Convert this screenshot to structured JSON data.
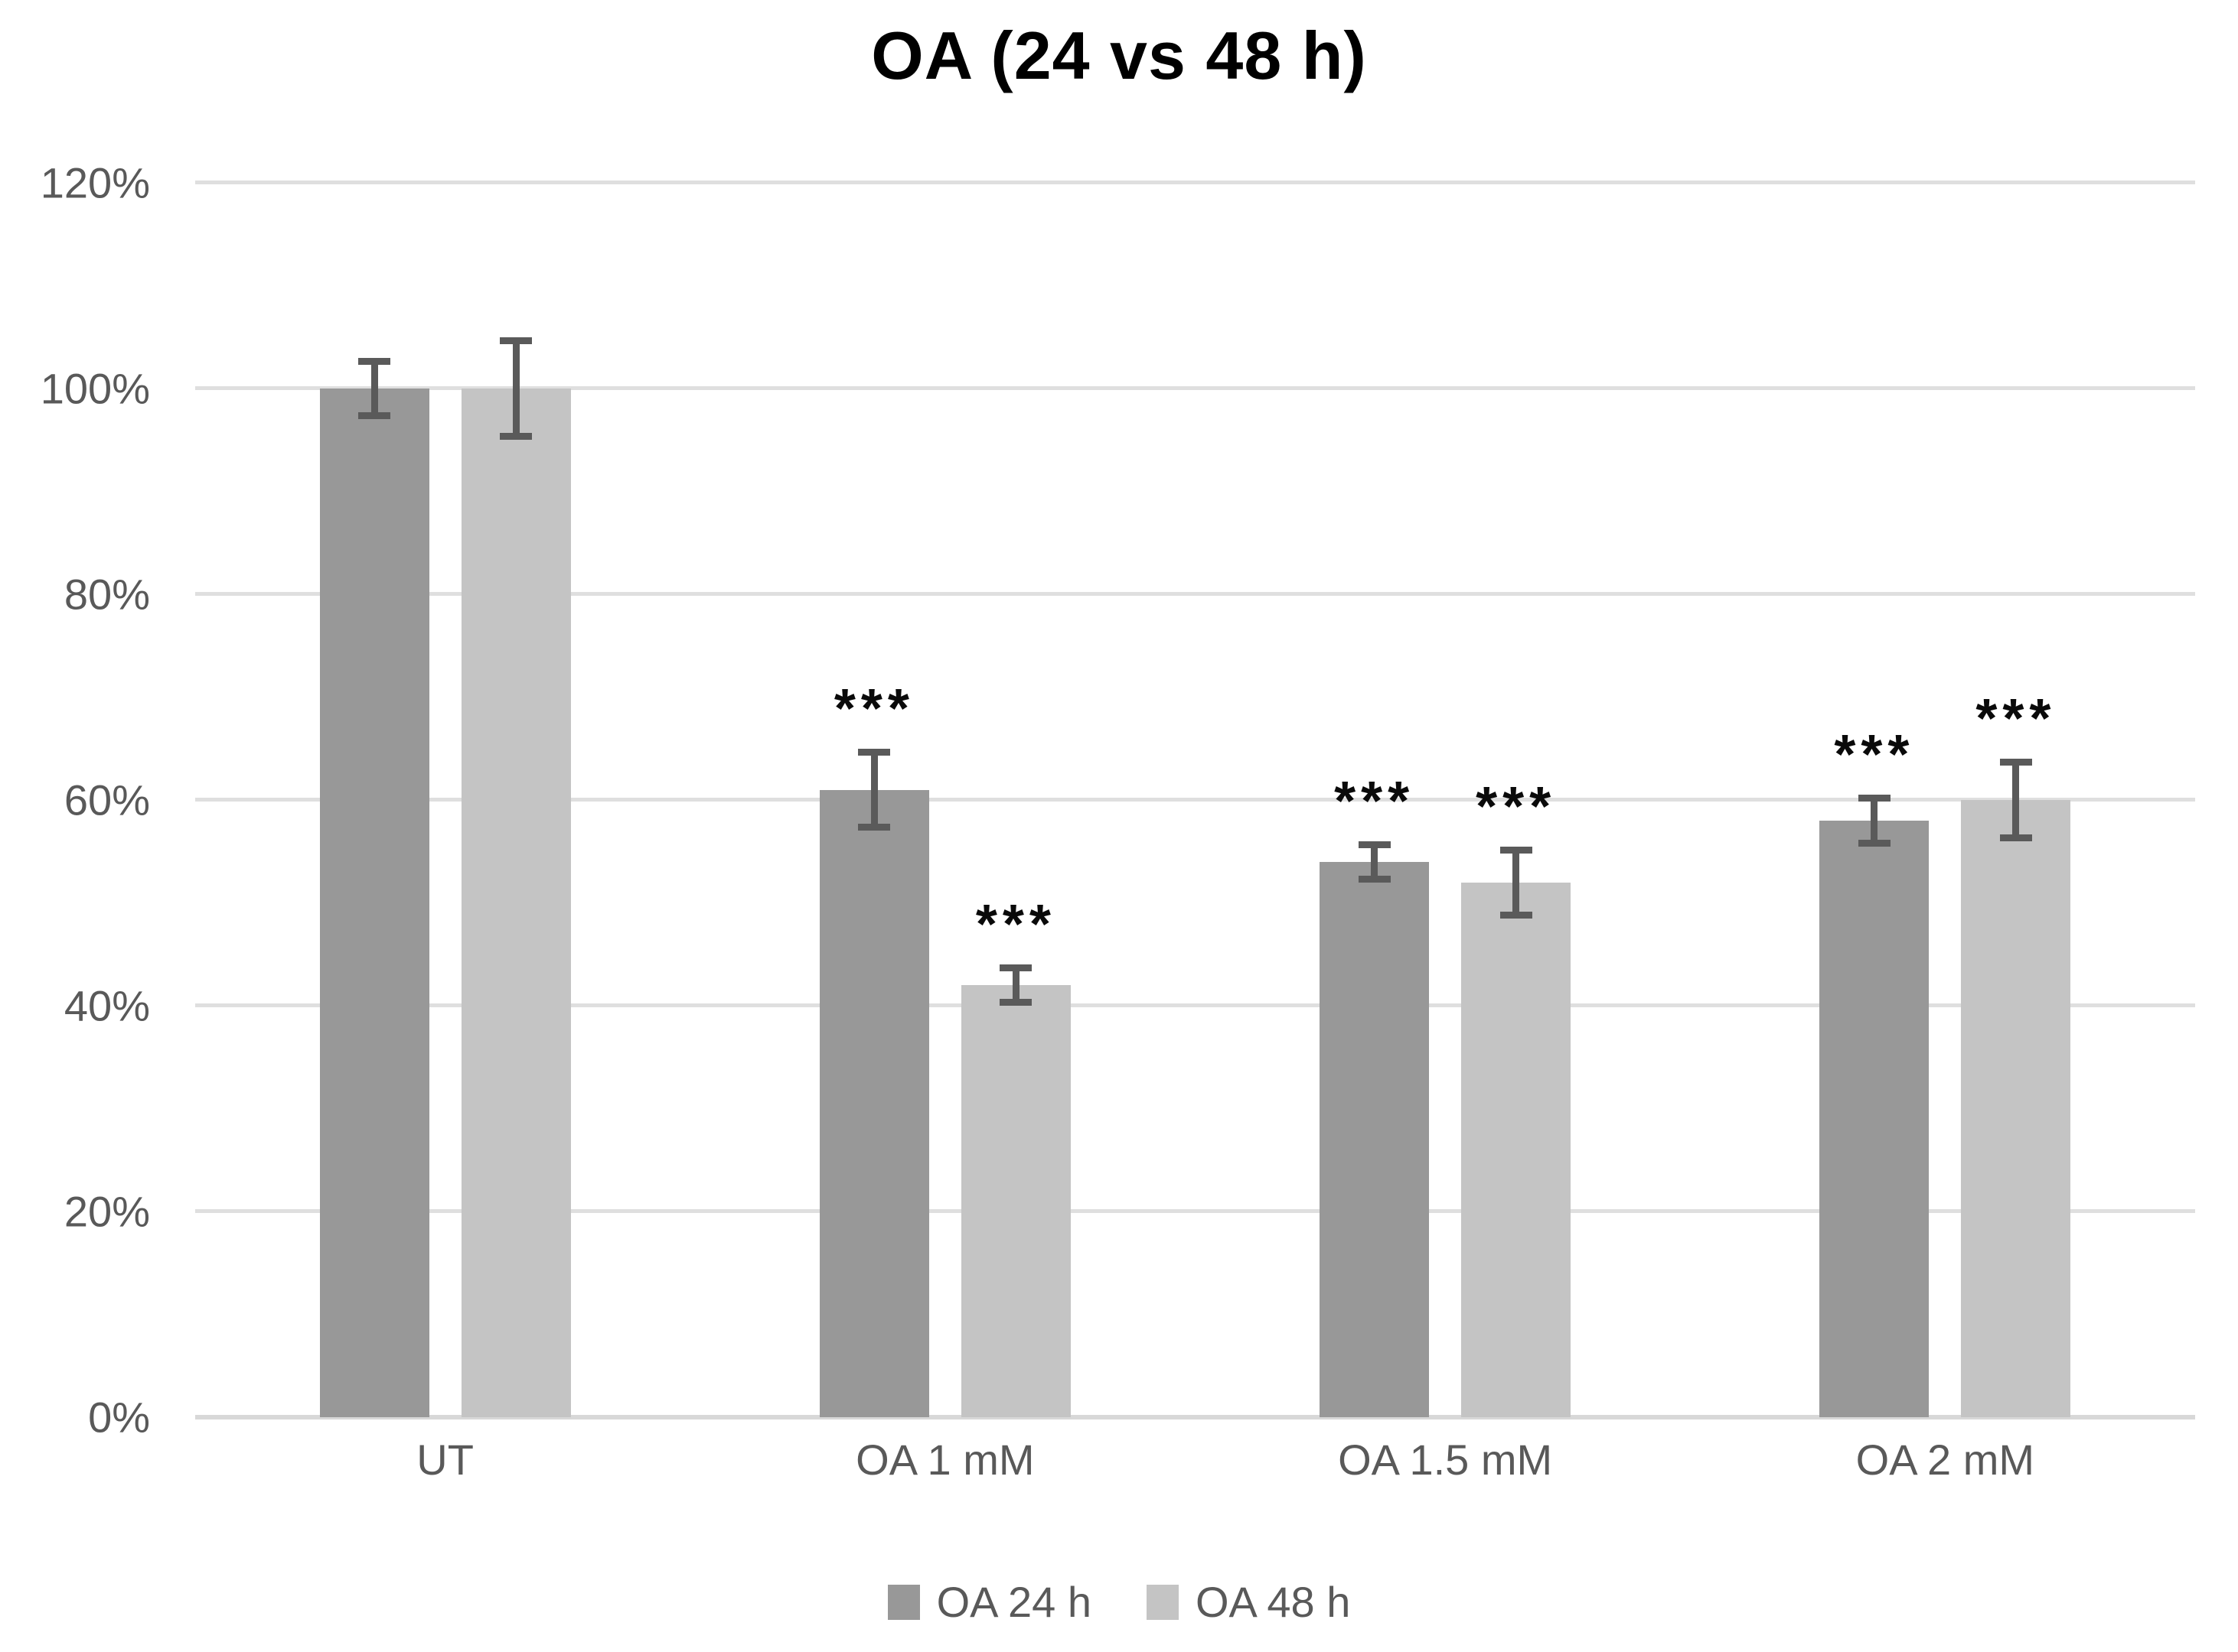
{
  "chart_data": {
    "type": "bar",
    "title": "OA (24 vs 48 h)",
    "categories": [
      "UT",
      "OA 1 mM",
      "OA 1.5 mM",
      "OA 2 mM"
    ],
    "series": [
      {
        "name": "OA 24 h",
        "color": "#989898",
        "values": [
          100,
          61,
          54,
          58
        ],
        "error_bars": [
          3,
          4,
          2,
          2.5
        ],
        "significance": [
          "",
          "***",
          "***",
          "***"
        ]
      },
      {
        "name": "OA 48 h",
        "color": "#c4c4c4",
        "values": [
          100,
          42,
          52,
          60
        ],
        "error_bars": [
          5,
          2,
          3.5,
          4
        ],
        "significance": [
          "",
          "***",
          "***",
          "***"
        ]
      }
    ],
    "y_axis": {
      "min": 0,
      "max": 120,
      "step": 20,
      "tick_labels": [
        "0%",
        "20%",
        "40%",
        "60%",
        "80%",
        "100%",
        "120%"
      ],
      "format": "percent"
    },
    "grid": true,
    "legend_position": "bottom",
    "legend_entries": [
      "OA 24 h",
      "OA 48 h"
    ],
    "error_bar_color": "#5a5a5a",
    "gridline_color": "#dfdfdf",
    "axis_line_color": "#d8d8d8",
    "text_color": "#595959",
    "title_color": "#000000"
  }
}
